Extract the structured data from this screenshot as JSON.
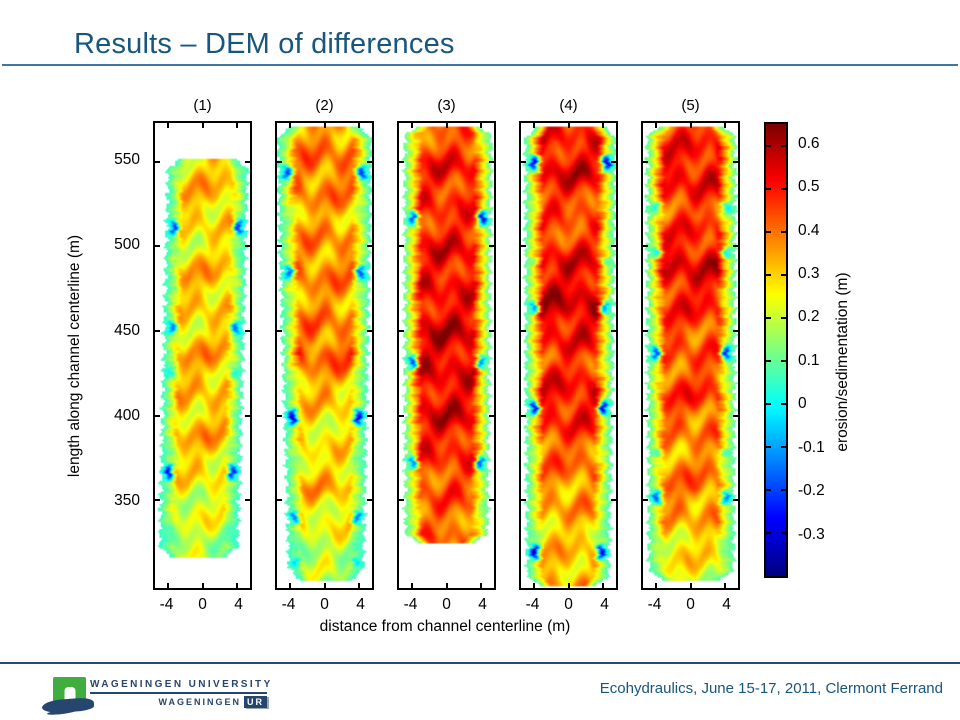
{
  "slide": {
    "title": "Results – DEM of differences",
    "footer_right": "Ecohydraulics, June 15-17, 2011, Clermont Ferrand",
    "title_color": "#18567E",
    "title_rule_color": "#3E76A0",
    "footer_rule_color": "#2B4A72"
  },
  "logo": {
    "line1": "WAGENINGEN UNIVERSITY",
    "line2": "WAGENINGEN",
    "badge": "UR",
    "green": "#3FAE3F",
    "navy": "#27466F"
  },
  "chart_data": {
    "type": "heatmap",
    "title": "",
    "xlabel": "distance from channel centerline (m)",
    "ylabel": "length along channel centerline (m)",
    "colorbar_label": "erosion/sedimentation (m)",
    "colormap": "jet",
    "x_ticks": [
      -4,
      0,
      4
    ],
    "xlim": [
      -5.5,
      5.5
    ],
    "y_ticks": [
      550,
      500,
      450,
      400,
      350
    ],
    "ylim": [
      298,
      573
    ],
    "colorbar_ticks": [
      0.6,
      0.5,
      0.4,
      0.3,
      0.2,
      0.1,
      0,
      -0.1,
      -0.2,
      -0.3
    ],
    "colorbar_range": [
      -0.4,
      0.65
    ],
    "units": "m",
    "panels": [
      {
        "label": "(1)",
        "seed": 1,
        "extent": [
          0.075,
          0.935
        ],
        "halfw": 0.42,
        "taper": 0.02,
        "lean": -0.1,
        "margin_value": 0.04,
        "bank_dip": 0.45,
        "centerline_values": [
          0.3,
          0.32,
          0.26,
          0.33,
          0.28,
          0.34,
          0.3,
          0.33,
          0.26,
          0.22,
          0.18
        ]
      },
      {
        "label": "(2)",
        "seed": 2,
        "extent": [
          0.005,
          0.985
        ],
        "halfw": 0.5,
        "taper": 0.22,
        "lean": 0.02,
        "margin_value": 0.05,
        "bank_dip": 0.5,
        "centerline_values": [
          0.36,
          0.4,
          0.34,
          0.38,
          0.36,
          0.42,
          0.3,
          0.26,
          0.32,
          0.22,
          0.16
        ]
      },
      {
        "label": "(3)",
        "seed": 3,
        "extent": [
          0.004,
          0.905
        ],
        "halfw": 0.46,
        "taper": 0.06,
        "lean": -0.02,
        "margin_value": 0.08,
        "bank_dip": 0.55,
        "centerline_values": [
          0.4,
          0.5,
          0.46,
          0.52,
          0.5,
          0.56,
          0.52,
          0.54,
          0.46,
          0.42,
          0.4
        ]
      },
      {
        "label": "(4)",
        "seed": 4,
        "extent": [
          0.004,
          0.998
        ],
        "halfw": 0.48,
        "taper": 0.1,
        "lean": -0.03,
        "margin_value": 0.06,
        "bank_dip": 0.6,
        "centerline_values": [
          0.46,
          0.54,
          0.42,
          0.52,
          0.56,
          0.46,
          0.52,
          0.42,
          0.36,
          0.3,
          0.34
        ]
      },
      {
        "label": "(5)",
        "seed": 5,
        "extent": [
          0.004,
          0.985
        ],
        "halfw": 0.47,
        "taper": 0.05,
        "lean": 0.0,
        "margin_value": 0.07,
        "bank_dip": 0.5,
        "centerline_values": [
          0.46,
          0.52,
          0.44,
          0.54,
          0.48,
          0.42,
          0.46,
          0.36,
          0.4,
          0.3,
          0.24
        ]
      }
    ]
  }
}
